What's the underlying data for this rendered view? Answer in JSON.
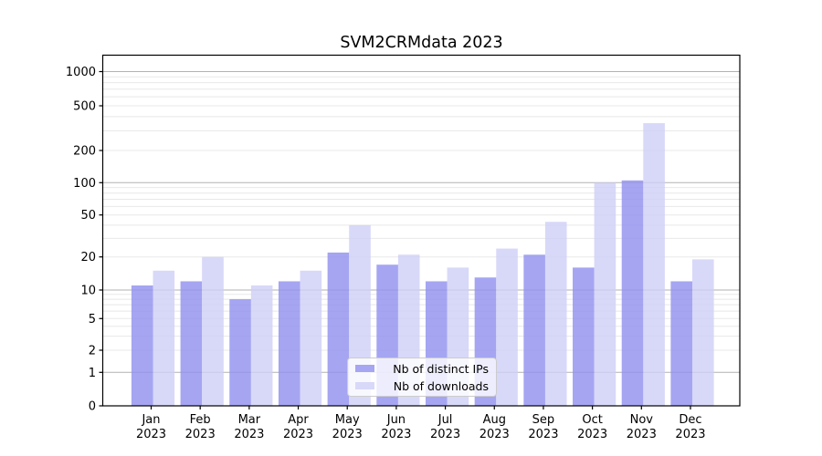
{
  "figure": {
    "title": "SVM2CRMdata 2023"
  },
  "chart_data": {
    "type": "bar",
    "title": "SVM2CRMdata 2023",
    "categories": [
      "Jan",
      "Feb",
      "Mar",
      "Apr",
      "May",
      "Jun",
      "Jul",
      "Aug",
      "Sep",
      "Oct",
      "Nov",
      "Dec"
    ],
    "year_label": "2023",
    "series": [
      {
        "name": "Nb of distinct IPs",
        "color": "#a6a6f2",
        "values": [
          11,
          12,
          8,
          12,
          22,
          17,
          12,
          13,
          21,
          16,
          105,
          12
        ]
      },
      {
        "name": "Nb of downloads",
        "color": "#d8d8f8",
        "values": [
          15,
          20,
          11,
          15,
          40,
          21,
          16,
          24,
          43,
          100,
          350,
          19
        ]
      }
    ],
    "xlabel": "",
    "ylabel": "",
    "yscale": "symlog",
    "ytick_labels": [
      "0",
      "1",
      "2",
      "5",
      "10",
      "20",
      "50",
      "100",
      "200",
      "500",
      "1000"
    ],
    "ytick_values": [
      0,
      1,
      2,
      5,
      10,
      20,
      50,
      100,
      200,
      500,
      1000
    ],
    "ylim": [
      0,
      1400
    ],
    "grid": {
      "major": true,
      "minor": true
    },
    "legend_position": "lower center",
    "colors": {
      "major_grid": "#b2b2b2",
      "minor_grid": "#e8e8e8",
      "axis": "#000000",
      "text": "#000000"
    }
  }
}
